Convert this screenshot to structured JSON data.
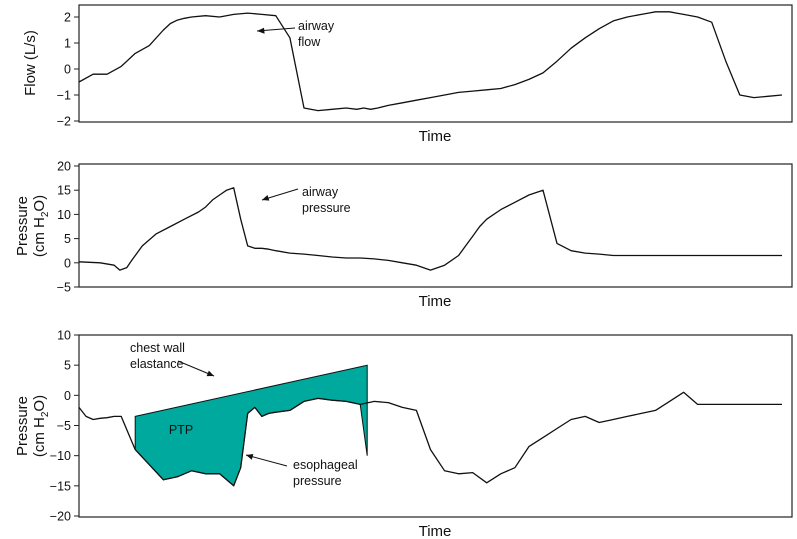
{
  "chart_data": [
    {
      "type": "line",
      "xlabel": "Time",
      "ylabel": "Flow (L/s)",
      "ylim": [
        -2,
        2.5
      ],
      "yticks": [
        2,
        1,
        0,
        -1,
        -2
      ],
      "xlim": [
        0,
        100
      ],
      "series": [
        {
          "x": [
            0,
            2,
            4,
            6,
            8,
            10,
            12,
            13,
            14,
            15,
            16,
            18,
            20,
            22,
            24,
            26,
            28,
            30,
            32,
            34,
            36,
            38,
            39.5,
            40.5,
            41.5,
            42.5,
            44,
            46,
            48,
            50,
            52,
            54,
            56,
            58,
            60,
            62,
            64,
            66,
            68,
            70,
            72,
            74,
            76,
            78,
            80,
            81,
            82,
            83,
            84,
            85,
            86,
            88,
            90,
            92,
            94,
            96,
            98,
            100
          ],
          "y": [
            -0.5,
            -0.2,
            -0.2,
            0.1,
            0.6,
            0.9,
            1.5,
            1.75,
            1.88,
            1.95,
            2.0,
            2.05,
            2.0,
            2.1,
            2.15,
            2.1,
            2.05,
            1.2,
            -1.5,
            -1.6,
            -1.55,
            -1.5,
            -1.55,
            -1.5,
            -1.55,
            -1.5,
            -1.4,
            -1.3,
            -1.2,
            -1.1,
            -1.0,
            -0.9,
            -0.85,
            -0.8,
            -0.75,
            -0.6,
            -0.4,
            -0.15,
            0.3,
            0.8,
            1.2,
            1.55,
            1.85,
            2.0,
            2.1,
            2.15,
            2.2,
            2.2,
            2.2,
            2.15,
            2.1,
            2.0,
            1.8,
            0.3,
            -1.0,
            -1.1,
            -1.05,
            -1.0
          ]
        }
      ],
      "annotations": [
        {
          "text": "airway",
          "x": 30.5,
          "y": 1.6,
          "line": 1
        },
        {
          "text": "flow",
          "x": 30.5,
          "y": 1.6,
          "line": 2
        }
      ]
    },
    {
      "type": "line",
      "xlabel": "Time",
      "ylabel": [
        "Pressure",
        "(cm H",
        "2",
        "O)"
      ],
      "ylim": [
        -5,
        20
      ],
      "yticks": [
        20,
        15,
        10,
        5,
        0,
        -5
      ],
      "xlim": [
        0,
        100
      ],
      "series": [
        {
          "x": [
            0,
            3,
            5,
            5.8,
            6.8,
            7.5,
            9,
            11,
            13,
            15,
            17,
            18,
            19,
            20,
            21,
            22,
            23,
            24,
            25,
            26,
            27,
            28,
            30,
            32,
            34,
            36,
            38,
            40,
            42,
            44,
            46,
            48,
            50,
            52,
            54,
            55,
            56,
            57,
            58,
            60,
            62,
            64,
            66,
            68,
            70,
            72,
            74,
            76,
            78,
            80,
            82,
            84,
            86,
            88,
            90,
            92,
            94,
            96,
            98,
            100
          ],
          "y": [
            0.2,
            0.0,
            -0.5,
            -1.5,
            -1.0,
            0.5,
            3.5,
            6.0,
            7.5,
            9.0,
            10.5,
            11.5,
            13.0,
            14.0,
            15.0,
            15.5,
            9.0,
            3.5,
            3.0,
            3.0,
            2.8,
            2.5,
            2.0,
            1.8,
            1.5,
            1.2,
            1.0,
            1.0,
            0.8,
            0.5,
            0.0,
            -0.5,
            -1.5,
            -0.5,
            1.5,
            3.5,
            5.5,
            7.5,
            9.0,
            11.0,
            12.5,
            14.0,
            15.0,
            4.0,
            2.5,
            2.0,
            1.8,
            1.5,
            1.5,
            1.5,
            1.5,
            1.5,
            1.5,
            1.5,
            1.5,
            1.5,
            1.5,
            1.5,
            1.5,
            1.5
          ]
        }
      ],
      "annotations": [
        {
          "text": "airway",
          "line": 1
        },
        {
          "text": "pressure",
          "line": 2
        }
      ]
    },
    {
      "type": "line",
      "xlabel": "Time",
      "ylabel": [
        "Pressure",
        "(cm H",
        "2",
        "O)"
      ],
      "ylim": [
        -20,
        10
      ],
      "yticks": [
        10,
        5,
        0,
        -5,
        -10,
        -15,
        -20
      ],
      "xlim": [
        0,
        100
      ],
      "series": [
        {
          "name": "esophageal pressure",
          "x": [
            0,
            1,
            2,
            3,
            4,
            5,
            6,
            8,
            10,
            12,
            14,
            16,
            18,
            20,
            22,
            23,
            24,
            25,
            26,
            27,
            28,
            30,
            32,
            34,
            36,
            38,
            40,
            42,
            44,
            46,
            48,
            50,
            52,
            54,
            56,
            58,
            60,
            62,
            64,
            66,
            68,
            70,
            72,
            74,
            76,
            78,
            80,
            82,
            84,
            86,
            88,
            90,
            92,
            94,
            96,
            98,
            100
          ],
          "y": [
            -2,
            -3.5,
            -4.0,
            -3.8,
            -3.7,
            -3.5,
            -3.5,
            -9.0,
            -11.5,
            -14.0,
            -13.5,
            -12.5,
            -13.0,
            -13.0,
            -15.0,
            -12.0,
            -3.0,
            -2.0,
            -3.5,
            -3.0,
            -2.8,
            -2.5,
            -1.0,
            -0.5,
            -0.8,
            -1.0,
            -1.5,
            -1.0,
            -1.2,
            -2.0,
            -2.5,
            -9.0,
            -12.5,
            -13.0,
            -12.8,
            -14.5,
            -13.0,
            -12.0,
            -8.5,
            -7.0,
            -5.5,
            -4.0,
            -3.5,
            -4.5,
            -4.0,
            -3.5,
            -3.0,
            -2.5,
            -1.0,
            0.5,
            -1.5,
            -1.5,
            -1.5,
            -1.5,
            -1.5,
            -1.5,
            -1.5
          ]
        }
      ],
      "ptp_region": {
        "label": "PTP",
        "x_start": 8,
        "x_end": 41,
        "y_start": -3.5,
        "y_end": 5
      },
      "annotations": [
        {
          "text": "chest wall",
          "line": 1
        },
        {
          "text": "elastance",
          "line": 2
        },
        {
          "text": "esophageal",
          "line": 1
        },
        {
          "text": "pressure",
          "line": 2
        }
      ]
    }
  ],
  "texts": {
    "p1_xlabel": "Time",
    "p1_ylabel": "Flow (L/s)",
    "p1_annot_1": "airway",
    "p1_annot_2": "flow",
    "p2_xlabel": "Time",
    "p2_ylabel_1": "Pressure",
    "p2_ylabel_2a": "(cm H",
    "p2_ylabel_sub": "2",
    "p2_ylabel_2b": "O)",
    "p2_annot_1": "airway",
    "p2_annot_2": "pressure",
    "p3_xlabel": "Time",
    "p3_ylabel_1": "Pressure",
    "p3_ylabel_2a": "(cm H",
    "p3_ylabel_sub": "2",
    "p3_ylabel_2b": "O)",
    "p3_annot_ce_1": "chest wall",
    "p3_annot_ce_2": "elastance",
    "p3_annot_ep_1": "esophageal",
    "p3_annot_ep_2": "pressure",
    "p3_ptp": "PTP"
  },
  "colors": {
    "ptp_fill": "#00a99d",
    "trace": "#111111"
  }
}
